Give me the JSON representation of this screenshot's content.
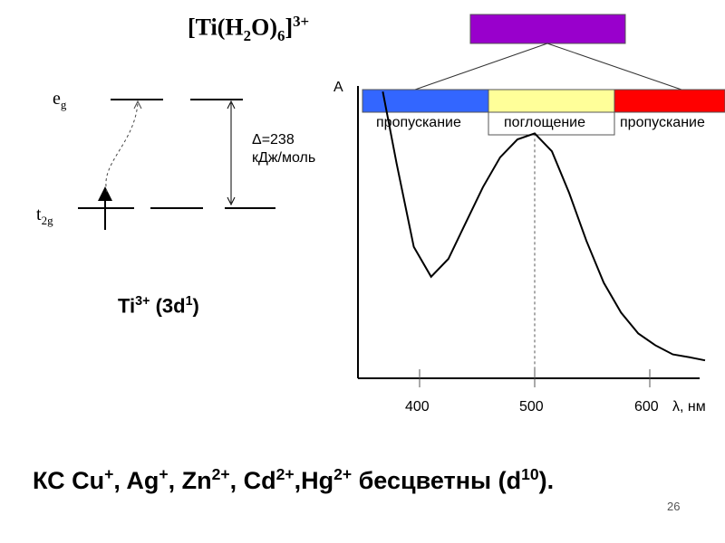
{
  "formula": {
    "prefix": "[Ti(H",
    "h_sub": "2",
    "mid": "O)",
    "n_sub": "6",
    "suffix": "]",
    "charge": "3+"
  },
  "levels": {
    "eg": "e",
    "eg_sub": "g",
    "t2g": "t",
    "t2g_sub": "2g"
  },
  "delta": {
    "line1": "Δ=238",
    "line2": "кДж/моль"
  },
  "ion": {
    "symbol": "Ti",
    "charge": "3+",
    "config": " (3d",
    "config_sup": "1",
    "close": ")"
  },
  "bands": [
    {
      "label": "пропускание",
      "color": "#3366ff"
    },
    {
      "label": "поглощение",
      "color": "#ffff99"
    },
    {
      "label": "пропускание",
      "color": "#ff0000"
    }
  ],
  "complex_color": "#9900cc",
  "chart_data": {
    "type": "line",
    "ylabel": "A",
    "xlabel": "λ, нм",
    "xticks": [
      "400",
      "500",
      "600"
    ],
    "xlim": [
      350,
      650
    ],
    "peak_x": 500,
    "series": [
      {
        "x": [
          368,
          380,
          395,
          410,
          425,
          440,
          455,
          470,
          485,
          500,
          515,
          530,
          545,
          560,
          575,
          590,
          605,
          620,
          635,
          648
        ],
        "y": [
          0.96,
          0.72,
          0.44,
          0.34,
          0.4,
          0.52,
          0.64,
          0.74,
          0.8,
          0.82,
          0.76,
          0.62,
          0.46,
          0.32,
          0.22,
          0.15,
          0.11,
          0.08,
          0.07,
          0.06
        ]
      }
    ]
  },
  "bottom": {
    "prefix": "КС  Cu",
    "cu": "+",
    "ag": ", Ag",
    "ag_c": "+",
    "zn": ", Zn",
    "zn_c": "2+",
    "cd": ", Cd",
    "cd_c": "2+",
    "hg": ",Hg",
    "hg_c": "2+",
    "text": " бесцветны (d",
    "d": "10",
    "end": ")."
  },
  "page_number": "26"
}
